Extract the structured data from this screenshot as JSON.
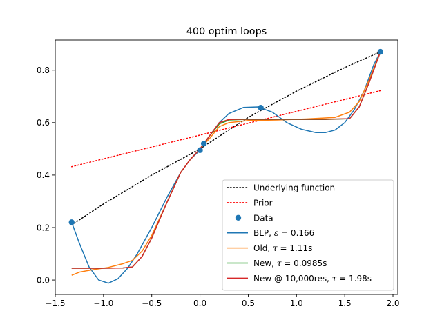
{
  "chart_data": {
    "type": "line",
    "title": "400 optim loops",
    "xlabel": "",
    "ylabel": "",
    "xlim": [
      -1.5,
      2.05
    ],
    "ylim": [
      -0.055,
      0.915
    ],
    "xticks": [
      -1.5,
      -1.0,
      -0.5,
      0.0,
      0.5,
      1.0,
      1.5,
      2.0
    ],
    "xtick_labels": [
      "−1.5",
      "−1.0",
      "−0.5",
      "0.0",
      "0.5",
      "1.0",
      "1.5",
      "2.0"
    ],
    "yticks": [
      0.0,
      0.2,
      0.4,
      0.6,
      0.8
    ],
    "ytick_labels": [
      "0.0",
      "0.2",
      "0.4",
      "0.6",
      "0.8"
    ],
    "grid": false,
    "legend_position": "lower-right",
    "series": [
      {
        "name": "Underlying function",
        "style": "dotted",
        "color": "#000000",
        "x": [
          -1.33,
          -1.0,
          -0.5,
          0.0,
          0.5,
          1.0,
          1.5,
          1.87
        ],
        "y": [
          0.21,
          0.29,
          0.4,
          0.5,
          0.62,
          0.72,
          0.81,
          0.87
        ]
      },
      {
        "name": "Prior",
        "style": "dotted",
        "color": "#ff0000",
        "x": [
          -1.33,
          1.87
        ],
        "y": [
          0.432,
          0.722
        ]
      },
      {
        "name": "Data",
        "style": "scatter",
        "color": "#1f77b4",
        "x": [
          -1.33,
          0.0,
          0.04,
          0.63,
          1.87
        ],
        "y": [
          0.22,
          0.495,
          0.52,
          0.657,
          0.87
        ]
      },
      {
        "name": "BLP, ε = 0.166",
        "legend_prefix": "BLP, ",
        "legend_symbol": "ε",
        "legend_value": " = 0.166",
        "style": "solid",
        "color": "#1f77b4",
        "x": [
          -1.33,
          -1.25,
          -1.15,
          -1.05,
          -0.95,
          -0.85,
          -0.75,
          -0.65,
          -0.5,
          -0.35,
          -0.2,
          -0.1,
          0.0,
          0.1,
          0.2,
          0.3,
          0.45,
          0.6,
          0.75,
          0.9,
          1.05,
          1.2,
          1.3,
          1.4,
          1.5,
          1.6,
          1.7,
          1.8,
          1.87
        ],
        "y": [
          0.22,
          0.14,
          0.05,
          0.0,
          -0.012,
          0.005,
          0.045,
          0.1,
          0.2,
          0.31,
          0.41,
          0.46,
          0.495,
          0.55,
          0.6,
          0.635,
          0.658,
          0.66,
          0.64,
          0.6,
          0.575,
          0.562,
          0.562,
          0.572,
          0.6,
          0.65,
          0.72,
          0.82,
          0.87
        ]
      },
      {
        "name": "Old, τ = 1.11s",
        "legend_prefix": "Old, ",
        "legend_symbol": "τ",
        "legend_value": " = 1.11s",
        "style": "solid",
        "color": "#ff7f0e",
        "x": [
          -1.33,
          -1.25,
          -1.1,
          -0.95,
          -0.8,
          -0.7,
          -0.6,
          -0.5,
          -0.35,
          -0.2,
          -0.1,
          0.0,
          0.1,
          0.2,
          0.3,
          0.5,
          0.8,
          1.1,
          1.4,
          1.55,
          1.65,
          1.75,
          1.87
        ],
        "y": [
          0.018,
          0.03,
          0.04,
          0.048,
          0.062,
          0.075,
          0.11,
          0.17,
          0.29,
          0.41,
          0.46,
          0.5,
          0.54,
          0.585,
          0.6,
          0.608,
          0.61,
          0.614,
          0.62,
          0.64,
          0.68,
          0.76,
          0.87
        ]
      },
      {
        "name": "New, τ = 0.0985s",
        "legend_prefix": "New, ",
        "legend_symbol": "τ",
        "legend_value": " = 0.0985s",
        "style": "solid",
        "color": "#2ca02c",
        "x": [
          -1.33,
          -1.0,
          -0.8,
          -0.7,
          -0.6,
          -0.5,
          -0.35,
          -0.2,
          -0.1,
          0.0,
          0.1,
          0.2,
          0.3,
          0.45,
          0.7,
          1.0,
          1.3,
          1.55,
          1.65,
          1.75,
          1.87
        ],
        "y": [
          0.045,
          0.045,
          0.046,
          0.05,
          0.09,
          0.16,
          0.29,
          0.41,
          0.46,
          0.5,
          0.55,
          0.595,
          0.61,
          0.612,
          0.612,
          0.612,
          0.612,
          0.615,
          0.66,
          0.75,
          0.87
        ]
      },
      {
        "name": "New @ 10,000res, τ = 1.98s",
        "legend_prefix": "New @ 10,000res, ",
        "legend_symbol": "τ",
        "legend_value": " = 1.98s",
        "style": "solid",
        "color": "#d62728",
        "x": [
          -1.33,
          -1.0,
          -0.8,
          -0.7,
          -0.6,
          -0.5,
          -0.35,
          -0.2,
          -0.1,
          0.0,
          0.1,
          0.2,
          0.3,
          0.45,
          0.7,
          1.0,
          1.3,
          1.55,
          1.65,
          1.75,
          1.87
        ],
        "y": [
          0.045,
          0.045,
          0.046,
          0.05,
          0.09,
          0.16,
          0.29,
          0.41,
          0.46,
          0.5,
          0.55,
          0.6,
          0.612,
          0.613,
          0.613,
          0.613,
          0.613,
          0.615,
          0.66,
          0.75,
          0.87
        ]
      }
    ]
  }
}
